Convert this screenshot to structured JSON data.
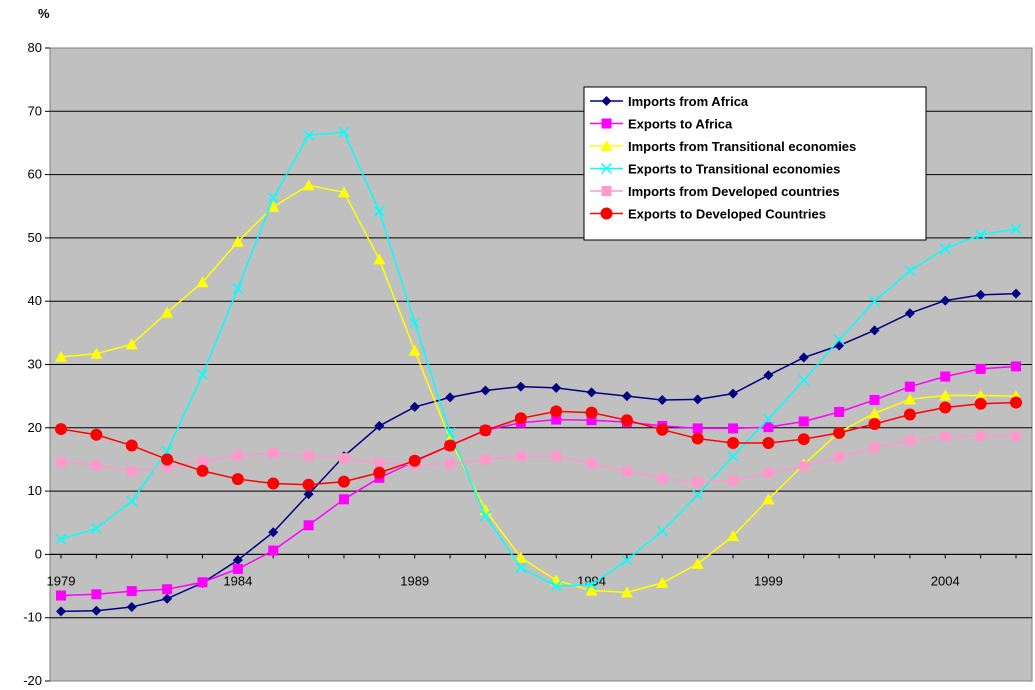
{
  "chart_data": {
    "type": "line",
    "ylabel": "%",
    "ylim": [
      -20,
      80
    ],
    "yticks": [
      -20,
      -10,
      0,
      10,
      20,
      30,
      40,
      50,
      60,
      70,
      80
    ],
    "x": [
      1979,
      1980,
      1981,
      1982,
      1983,
      1984,
      1985,
      1986,
      1987,
      1988,
      1989,
      1990,
      1991,
      1992,
      1993,
      1994,
      1995,
      1996,
      1997,
      1998,
      1999,
      2000,
      2001,
      2002,
      2003,
      2004,
      2005,
      2006
    ],
    "xtick_labels": [
      "1979",
      "1984",
      "1989",
      "1994",
      "1999",
      "2004"
    ],
    "grid": true,
    "legend_position": "top-right",
    "plot_background": "#c0c0c0",
    "series": [
      {
        "name": "Imports from Africa",
        "color": "#000080",
        "marker": "diamond",
        "values": [
          -9.0,
          -8.9,
          -8.3,
          -7.0,
          -4.5,
          -0.9,
          3.5,
          9.5,
          15.5,
          20.3,
          23.3,
          24.8,
          25.9,
          26.5,
          26.3,
          25.6,
          25.0,
          24.4,
          24.5,
          25.4,
          28.3,
          31.1,
          33.0,
          35.4,
          38.1,
          40.1,
          41.0,
          41.2
        ]
      },
      {
        "name": "Exports to Africa",
        "color": "#ff00ff",
        "marker": "square",
        "values": [
          -6.5,
          -6.3,
          -5.8,
          -5.5,
          -4.4,
          -2.3,
          0.6,
          4.6,
          8.7,
          12.1,
          14.7,
          17.2,
          19.6,
          20.8,
          21.3,
          21.2,
          20.9,
          20.3,
          19.9,
          19.9,
          20.1,
          21.0,
          22.5,
          24.4,
          26.5,
          28.1,
          29.3,
          29.7
        ]
      },
      {
        "name": "Imports from Transitional economies",
        "color": "#ffff00",
        "marker": "triangle",
        "values": [
          31.2,
          31.7,
          33.2,
          38.2,
          43.0,
          49.4,
          54.9,
          58.3,
          57.2,
          46.6,
          32.2,
          18.2,
          7.0,
          -0.5,
          -4.1,
          -5.7,
          -6.0,
          -4.5,
          -1.5,
          2.9,
          8.7,
          14.2,
          19.3,
          22.3,
          24.5,
          25.1,
          25.1,
          25.0
        ]
      },
      {
        "name": "Exports to Transitional economies",
        "color": "#00ffff",
        "marker": "x",
        "values": [
          2.4,
          4.1,
          8.4,
          16.3,
          28.4,
          42.0,
          56.3,
          66.2,
          66.7,
          54.2,
          36.6,
          19.2,
          6.1,
          -2.1,
          -5.0,
          -4.8,
          -0.9,
          3.7,
          9.4,
          15.5,
          21.4,
          27.5,
          33.9,
          40.0,
          44.8,
          48.3,
          50.5,
          51.4
        ]
      },
      {
        "name": "Imports from Developed countries",
        "color": "#ff99cc",
        "marker": "square",
        "values": [
          14.6,
          14.1,
          13.2,
          13.8,
          14.7,
          15.6,
          16.0,
          15.6,
          15.2,
          14.4,
          14.2,
          14.3,
          15.0,
          15.5,
          15.5,
          14.4,
          13.1,
          12.0,
          11.4,
          11.7,
          12.9,
          13.9,
          15.4,
          16.9,
          18.0,
          18.6,
          18.7,
          18.7
        ]
      },
      {
        "name": "Exports to Developed Countries",
        "color": "#ff0000",
        "marker": "circle",
        "values": [
          19.8,
          18.9,
          17.2,
          15.0,
          13.2,
          11.9,
          11.2,
          11.0,
          11.5,
          12.9,
          14.8,
          17.2,
          19.6,
          21.5,
          22.6,
          22.4,
          21.2,
          19.7,
          18.3,
          17.6,
          17.6,
          18.2,
          19.2,
          20.6,
          22.1,
          23.2,
          23.8,
          24.0
        ]
      }
    ]
  }
}
